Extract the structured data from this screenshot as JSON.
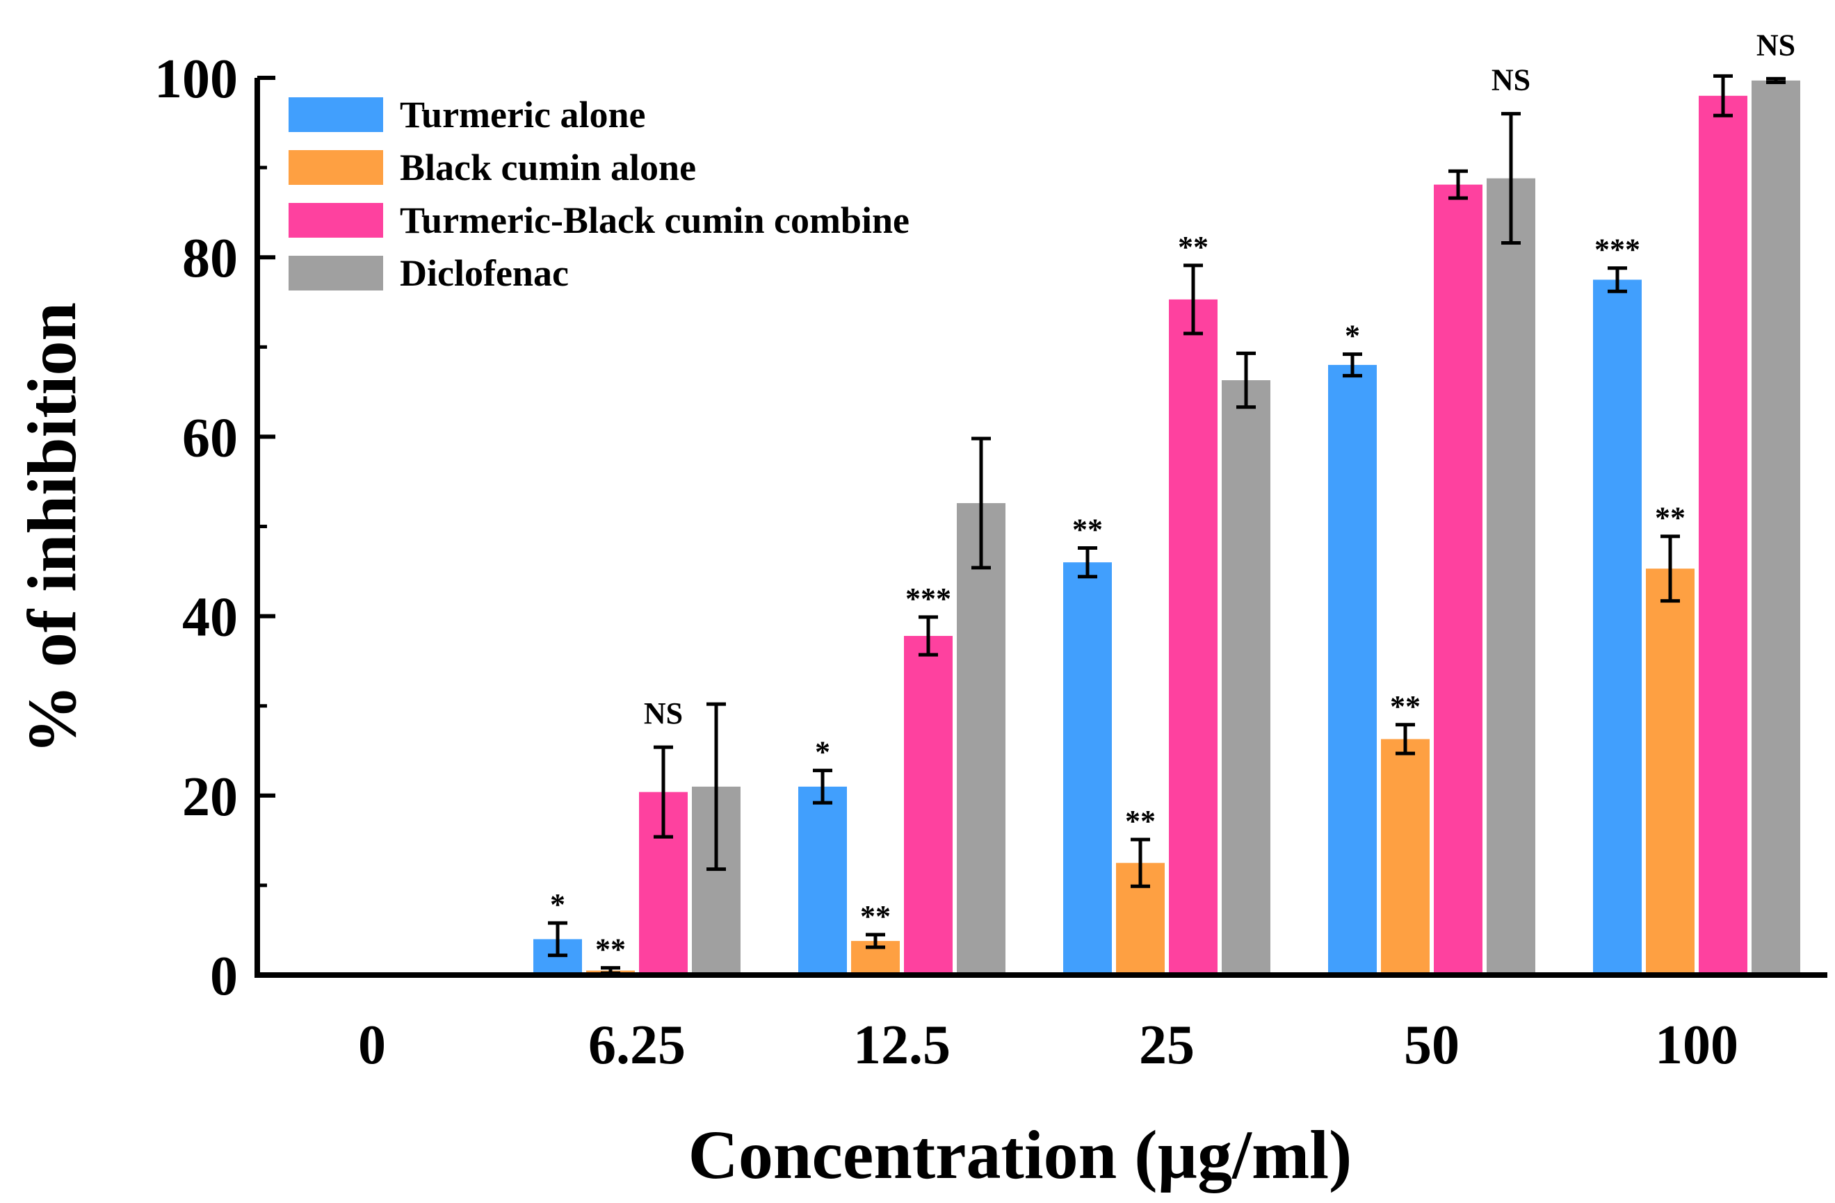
{
  "chart_data": {
    "type": "bar",
    "title": "",
    "xlabel": "Concentration (µg/ml)",
    "ylabel": "% of inhibition",
    "ylim": [
      0,
      100
    ],
    "yticks": [
      "0",
      "20",
      "40",
      "60",
      "80",
      "100"
    ],
    "categories": [
      "0",
      "6.25",
      "12.5",
      "25",
      "50",
      "100"
    ],
    "grid": false,
    "legend_position": "top-left",
    "series": [
      {
        "name": "Turmeric alone",
        "color": "#419ffd",
        "values": [
          0,
          4,
          21,
          46,
          68,
          77.5
        ],
        "errors": [
          0,
          1.8,
          1.8,
          1.6,
          1.2,
          1.3
        ],
        "significance": [
          "",
          "*",
          "*",
          "**",
          "*",
          "***"
        ]
      },
      {
        "name": "Black cumin alone",
        "color": "#fea042",
        "values": [
          0,
          0.5,
          3.8,
          12.5,
          26.3,
          45.3
        ],
        "errors": [
          0,
          0.3,
          0.7,
          2.6,
          1.6,
          3.6
        ],
        "significance": [
          "",
          "**",
          "**",
          "**",
          "**",
          "**"
        ]
      },
      {
        "name": "Turmeric-Black cumin combine",
        "color": "#fe419f",
        "values": [
          0,
          20.4,
          37.8,
          75.3,
          88.1,
          98
        ],
        "errors": [
          0,
          5,
          2.1,
          3.8,
          1.5,
          2.2
        ],
        "significance": [
          "",
          "NS",
          "***",
          "**",
          "",
          ""
        ]
      },
      {
        "name": "Diclofenac",
        "color": "#a0a0a0",
        "values": [
          0,
          21,
          52.6,
          66.3,
          88.8,
          99.7
        ],
        "errors": [
          0,
          9.2,
          7.2,
          3,
          7.2,
          0.2
        ],
        "significance": [
          "",
          "",
          "",
          "",
          "NS",
          "NS"
        ]
      }
    ]
  }
}
